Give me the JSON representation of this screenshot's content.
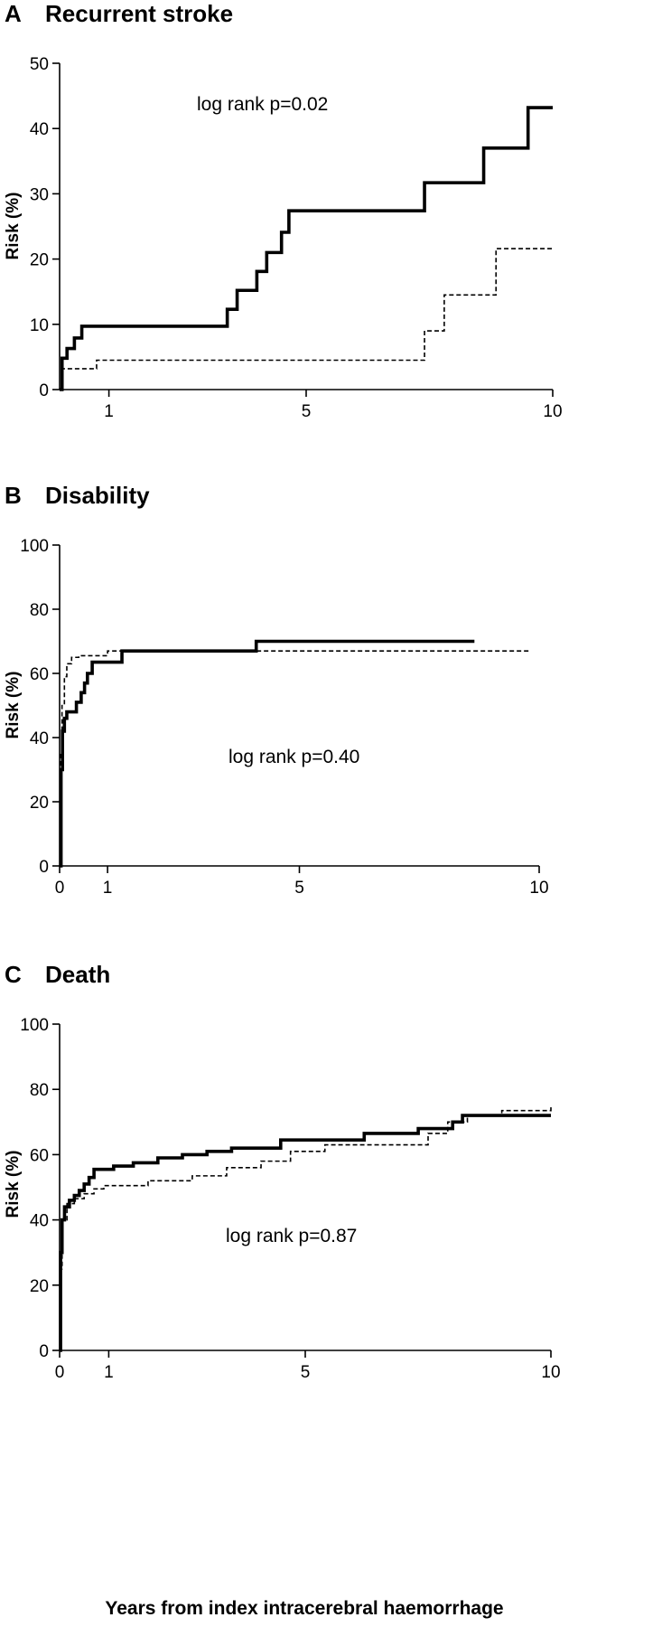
{
  "figure": {
    "xlabel": "Years from index intracerebral haemorrhage"
  },
  "chart_data": [
    {
      "type": "line",
      "letter": "A",
      "title": "Recurrent stroke",
      "ylabel": "Risk  (%)",
      "xlabel": "",
      "annotation": "log rank p=0.02",
      "ylim": [
        0,
        50
      ],
      "xlim": [
        0,
        10
      ],
      "yticks": [
        0,
        10,
        20,
        30,
        40,
        50
      ],
      "xticks": [
        1,
        5,
        10
      ],
      "grid": false,
      "series": [
        {
          "style": "solid",
          "x": [
            0,
            0.05,
            0.15,
            0.3,
            0.45,
            3.4,
            3.6,
            4.0,
            4.2,
            4.5,
            4.65,
            7.4,
            8.6,
            9.5,
            10
          ],
          "y": [
            0,
            4.8,
            6.3,
            7.9,
            9.7,
            12.3,
            15.2,
            18.1,
            21.0,
            24.1,
            27.4,
            31.7,
            37.0,
            43.2,
            43.2
          ]
        },
        {
          "style": "dashed",
          "x": [
            0,
            0.05,
            0.75,
            7.4,
            7.8,
            8.85,
            10
          ],
          "y": [
            0,
            3.2,
            4.5,
            9.0,
            14.5,
            21.6,
            21.6
          ]
        }
      ]
    },
    {
      "type": "line",
      "letter": "B",
      "title": "Disability",
      "ylabel": "Risk  (%)",
      "xlabel": "",
      "annotation": "log rank p=0.40",
      "ylim": [
        0,
        100
      ],
      "xlim": [
        0,
        10
      ],
      "yticks": [
        0,
        20,
        40,
        60,
        80,
        100
      ],
      "xticks": [
        0,
        1,
        5,
        10
      ],
      "grid": false,
      "series": [
        {
          "style": "solid",
          "x": [
            0,
            0.03,
            0.06,
            0.1,
            0.15,
            0.35,
            0.45,
            0.52,
            0.58,
            0.68,
            1.3,
            4.1,
            8.65
          ],
          "y": [
            0,
            30,
            42,
            46,
            48,
            51,
            54,
            57,
            60,
            63.5,
            67,
            70,
            70
          ]
        },
        {
          "style": "dashed",
          "x": [
            0,
            0.02,
            0.05,
            0.1,
            0.15,
            0.25,
            0.4,
            1.0,
            9.8
          ],
          "y": [
            0,
            35,
            50,
            59,
            63,
            65,
            65.5,
            67,
            67
          ]
        }
      ]
    },
    {
      "type": "line",
      "letter": "C",
      "title": "Death",
      "ylabel": "Risk  (%)",
      "xlabel": "Years from index intracerebral haemorrhage",
      "annotation": "log rank p=0.87",
      "ylim": [
        0,
        100
      ],
      "xlim": [
        0,
        10
      ],
      "yticks": [
        0,
        20,
        40,
        60,
        80,
        100
      ],
      "xticks": [
        0,
        1,
        5,
        10
      ],
      "grid": false,
      "series": [
        {
          "style": "solid",
          "x": [
            0,
            0.02,
            0.05,
            0.1,
            0.2,
            0.3,
            0.4,
            0.5,
            0.6,
            0.7,
            1.1,
            1.5,
            2.0,
            2.5,
            3.0,
            3.5,
            4.5,
            6.2,
            7.3,
            8.0,
            8.2,
            10
          ],
          "y": [
            0,
            30,
            40,
            44,
            46,
            47.5,
            49,
            51,
            53,
            55.5,
            56.5,
            57.5,
            59,
            60,
            61,
            62,
            64.5,
            66.5,
            68,
            70,
            72,
            72
          ]
        },
        {
          "style": "dashed",
          "x": [
            0,
            0.02,
            0.05,
            0.15,
            0.3,
            0.5,
            0.7,
            0.9,
            1.8,
            2.7,
            3.4,
            4.1,
            4.7,
            5.4,
            7.5,
            7.9,
            8.3,
            9.0,
            10
          ],
          "y": [
            0,
            25,
            40,
            45,
            46.5,
            48,
            49.5,
            50.5,
            52,
            53.5,
            56,
            58,
            61,
            63,
            66.5,
            70,
            72,
            73.5,
            75
          ]
        }
      ]
    }
  ]
}
